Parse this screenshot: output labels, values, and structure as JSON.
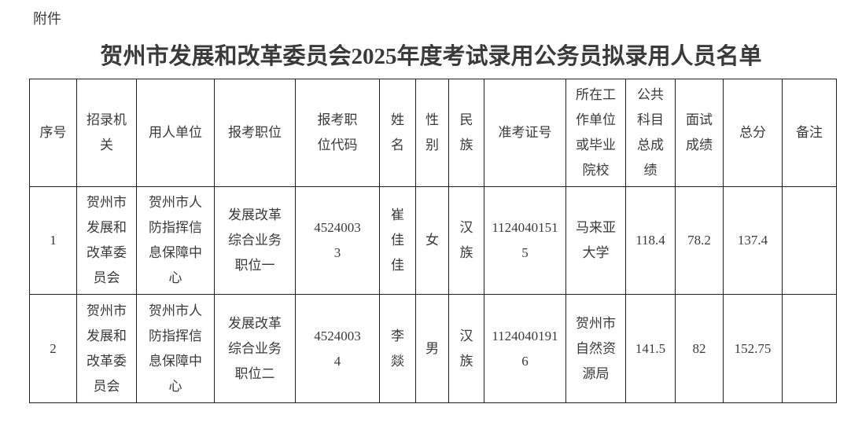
{
  "page": {
    "attachment_label": "附件",
    "title": "贺州市发展和改革委员会2025年度考试录用公务员拟录用人员名单"
  },
  "table": {
    "headers": [
      "序号",
      "招录机\n关",
      "用人单位",
      "报考职位",
      "报考职\n位代码",
      "姓\n名",
      "性\n别",
      "民\n族",
      "准考证号",
      "所在工\n作单位\n或毕业\n院校",
      "公共\n科目\n总成\n绩",
      "面试\n成绩",
      "总分",
      "备注"
    ],
    "rows": [
      [
        "1",
        "贺州市\n发展和\n改革委\n员会",
        "贺州市人\n防指挥信\n息保障中\n心",
        "发展改革\n综合业务\n职位一",
        "4524003\n3",
        "崔\n佳\n佳",
        "女",
        "汉\n族",
        "1124040151\n5",
        "马来亚\n大学",
        "118.4",
        "78.2",
        "137.4",
        ""
      ],
      [
        "2",
        "贺州市\n发展和\n改革委\n员会",
        "贺州市人\n防指挥信\n息保障中\n心",
        "发展改革\n综合业务\n职位二",
        "4524003\n4",
        "李\n燚",
        "男",
        "汉\n族",
        "1124040191\n6",
        "贺州市\n自然资\n源局",
        "141.5",
        "82",
        "152.75",
        ""
      ]
    ]
  },
  "colors": {
    "text": "#3a3a3a",
    "border": "#1f1f1f",
    "background": "#ffffff"
  }
}
